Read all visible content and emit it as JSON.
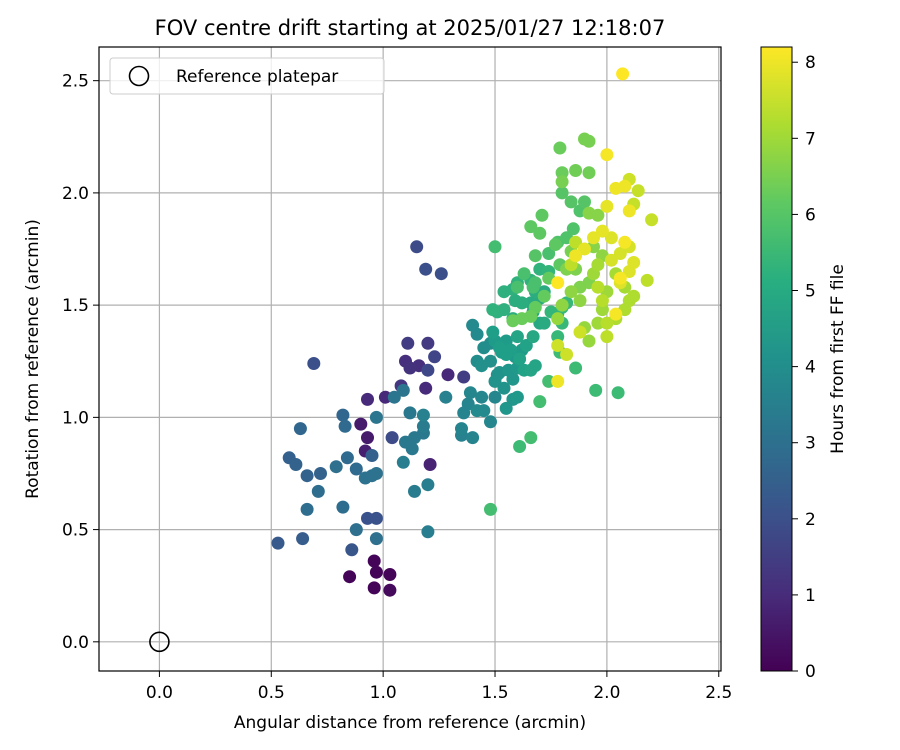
{
  "chart_data": {
    "type": "scatter",
    "title": "FOV centre drift starting at 2025/01/27 12:18:07",
    "xlabel": "Angular distance from reference (arcmin)",
    "ylabel": "Rotation from reference (arcmin)",
    "xlim": [
      -0.27,
      2.51
    ],
    "ylim": [
      -0.13,
      2.65
    ],
    "xticks": [
      "0.0",
      "0.5",
      "1.0",
      "1.5",
      "2.0",
      "2.5"
    ],
    "yticks": [
      "0.0",
      "0.5",
      "1.0",
      "1.5",
      "2.0",
      "2.5"
    ],
    "grid": true,
    "legend": {
      "placement": "top-left",
      "entries": [
        "Reference platepar"
      ]
    },
    "reference_point": {
      "x": 0.0,
      "y": 0.0,
      "label": "Reference platepar"
    },
    "colorbar": {
      "label": "Hours from first FF file",
      "colormap": "viridis",
      "range": [
        0,
        8.2
      ],
      "ticks": [
        "0",
        "1",
        "2",
        "3",
        "4",
        "5",
        "6",
        "7",
        "8"
      ]
    },
    "series": [
      {
        "points": [
          [
            0.85,
            0.29,
            0.1
          ],
          [
            0.96,
            0.36,
            0.1
          ],
          [
            0.97,
            0.31,
            0.1
          ],
          [
            1.03,
            0.3,
            0.1
          ],
          [
            0.96,
            0.24,
            0.1
          ],
          [
            1.03,
            0.23,
            0.2
          ],
          [
            0.9,
            0.97,
            0.6
          ],
          [
            0.93,
            0.91,
            0.6
          ],
          [
            0.92,
            0.85,
            0.7
          ],
          [
            1.21,
            0.79,
            0.8
          ],
          [
            1.29,
            1.19,
            0.9
          ],
          [
            1.01,
            1.09,
            0.9
          ],
          [
            0.93,
            1.08,
            1.0
          ],
          [
            1.19,
            1.13,
            1.0
          ],
          [
            1.16,
            1.23,
            1.1
          ],
          [
            1.1,
            1.25,
            1.1
          ],
          [
            1.12,
            1.22,
            1.2
          ],
          [
            1.08,
            1.14,
            1.3
          ],
          [
            1.2,
            1.33,
            1.4
          ],
          [
            1.11,
            1.33,
            1.5
          ],
          [
            1.36,
            1.18,
            1.5
          ],
          [
            1.23,
            1.27,
            1.7
          ],
          [
            1.2,
            1.21,
            1.8
          ],
          [
            1.04,
            0.91,
            1.9
          ],
          [
            1.15,
            1.76,
            1.9
          ],
          [
            1.19,
            1.66,
            2.0
          ],
          [
            1.26,
            1.64,
            2.0
          ],
          [
            0.69,
            1.24,
            2.0
          ],
          [
            0.93,
            0.55,
            2.1
          ],
          [
            0.97,
            0.55,
            2.1
          ],
          [
            0.86,
            0.41,
            2.2
          ],
          [
            0.53,
            0.44,
            2.3
          ],
          [
            0.64,
            0.46,
            2.4
          ],
          [
            0.95,
            0.83,
            2.5
          ],
          [
            0.58,
            0.82,
            2.5
          ],
          [
            0.61,
            0.79,
            2.6
          ],
          [
            0.66,
            0.74,
            2.6
          ],
          [
            0.72,
            0.75,
            2.6
          ],
          [
            0.63,
            0.95,
            2.7
          ],
          [
            0.82,
            1.01,
            2.7
          ],
          [
            0.83,
            0.96,
            2.8
          ],
          [
            0.88,
            0.77,
            2.8
          ],
          [
            0.84,
            0.82,
            2.8
          ],
          [
            0.71,
            0.67,
            2.9
          ],
          [
            0.66,
            0.59,
            2.9
          ],
          [
            0.82,
            0.6,
            2.9
          ],
          [
            0.88,
            0.5,
            3.0
          ],
          [
            0.97,
            0.46,
            3.0
          ],
          [
            0.79,
            0.78,
            3.0
          ],
          [
            0.95,
            0.74,
            3.1
          ],
          [
            0.92,
            0.73,
            3.1
          ],
          [
            0.97,
            0.75,
            3.1
          ],
          [
            0.97,
            1.0,
            3.2
          ],
          [
            1.05,
            1.09,
            3.2
          ],
          [
            1.09,
            1.12,
            3.2
          ],
          [
            1.1,
            0.89,
            3.3
          ],
          [
            1.13,
            0.86,
            3.3
          ],
          [
            1.14,
            0.91,
            3.3
          ],
          [
            1.18,
            0.93,
            3.3
          ],
          [
            1.12,
            1.02,
            3.3
          ],
          [
            1.18,
            0.96,
            3.4
          ],
          [
            1.14,
            0.67,
            3.4
          ],
          [
            1.2,
            0.7,
            3.5
          ],
          [
            1.2,
            0.49,
            3.5
          ],
          [
            1.09,
            0.8,
            3.5
          ],
          [
            1.18,
            1.01,
            3.6
          ],
          [
            1.28,
            1.09,
            3.6
          ],
          [
            1.35,
            0.92,
            3.6
          ],
          [
            1.35,
            0.95,
            3.7
          ],
          [
            1.4,
            0.91,
            3.7
          ],
          [
            1.36,
            1.02,
            3.7
          ],
          [
            1.38,
            1.06,
            3.7
          ],
          [
            1.39,
            1.11,
            3.8
          ],
          [
            1.44,
            1.09,
            3.8
          ],
          [
            1.48,
            0.98,
            3.8
          ],
          [
            1.5,
            1.09,
            3.8
          ],
          [
            1.45,
            1.03,
            3.9
          ],
          [
            1.42,
            1.03,
            3.9
          ],
          [
            1.4,
            1.41,
            3.9
          ],
          [
            1.42,
            1.37,
            3.9
          ],
          [
            1.45,
            1.31,
            4.0
          ],
          [
            1.48,
            1.33,
            4.0
          ],
          [
            1.42,
            1.25,
            4.0
          ],
          [
            1.48,
            1.25,
            4.1
          ],
          [
            1.44,
            1.23,
            4.1
          ],
          [
            1.51,
            1.19,
            4.1
          ],
          [
            1.5,
            1.16,
            4.2
          ],
          [
            1.52,
            1.2,
            4.2
          ],
          [
            1.54,
            1.13,
            4.2
          ],
          [
            1.56,
            1.21,
            4.3
          ],
          [
            1.58,
            1.17,
            4.3
          ],
          [
            1.58,
            1.08,
            4.3
          ],
          [
            1.55,
            1.04,
            4.3
          ],
          [
            1.6,
            1.09,
            4.4
          ],
          [
            1.6,
            1.22,
            4.4
          ],
          [
            1.59,
            1.27,
            4.4
          ],
          [
            1.62,
            1.3,
            4.5
          ],
          [
            1.55,
            1.34,
            4.5
          ],
          [
            1.53,
            1.29,
            4.5
          ],
          [
            1.5,
            1.34,
            4.5
          ],
          [
            1.49,
            1.38,
            4.6
          ],
          [
            1.52,
            1.31,
            4.6
          ],
          [
            1.55,
            1.28,
            4.6
          ],
          [
            1.57,
            1.3,
            4.6
          ],
          [
            1.61,
            1.26,
            4.7
          ],
          [
            1.64,
            1.32,
            4.7
          ],
          [
            1.63,
            1.21,
            4.7
          ],
          [
            1.66,
            1.21,
            4.8
          ],
          [
            1.68,
            1.23,
            4.8
          ],
          [
            1.6,
            1.36,
            4.8
          ],
          [
            1.67,
            1.36,
            4.9
          ],
          [
            1.7,
            1.42,
            4.9
          ],
          [
            1.67,
            1.47,
            4.9
          ],
          [
            1.72,
            1.42,
            5.0
          ],
          [
            1.66,
            1.51,
            5.0
          ],
          [
            1.7,
            1.53,
            5.0
          ],
          [
            1.72,
            1.56,
            5.0
          ],
          [
            1.68,
            1.56,
            5.1
          ],
          [
            1.62,
            1.51,
            5.1
          ],
          [
            1.58,
            1.44,
            5.1
          ],
          [
            1.59,
            1.52,
            5.1
          ],
          [
            1.58,
            1.57,
            5.2
          ],
          [
            1.54,
            1.56,
            5.2
          ],
          [
            1.54,
            1.48,
            5.2
          ],
          [
            1.51,
            1.47,
            5.2
          ],
          [
            1.49,
            1.48,
            5.3
          ],
          [
            1.6,
            1.6,
            5.3
          ],
          [
            1.66,
            1.61,
            5.3
          ],
          [
            1.7,
            1.66,
            5.3
          ],
          [
            1.74,
            1.65,
            5.4
          ],
          [
            1.75,
            1.47,
            5.4
          ],
          [
            1.78,
            1.46,
            5.4
          ],
          [
            1.8,
            1.49,
            5.5
          ],
          [
            1.82,
            1.51,
            5.5
          ],
          [
            1.8,
            1.42,
            5.5
          ],
          [
            1.78,
            1.36,
            5.5
          ],
          [
            1.86,
            1.22,
            5.6
          ],
          [
            1.95,
            1.12,
            5.6
          ],
          [
            2.05,
            1.11,
            5.6
          ],
          [
            1.79,
            1.29,
            5.6
          ],
          [
            1.61,
            0.87,
            5.6
          ],
          [
            1.66,
            0.91,
            5.7
          ],
          [
            1.7,
            1.07,
            5.7
          ],
          [
            1.74,
            1.16,
            5.7
          ],
          [
            1.48,
            0.59,
            5.7
          ],
          [
            1.5,
            1.76,
            5.7
          ],
          [
            1.63,
            1.64,
            5.8
          ],
          [
            1.6,
            1.58,
            5.8
          ],
          [
            1.67,
            1.58,
            5.8
          ],
          [
            1.68,
            1.6,
            5.8
          ],
          [
            1.74,
            1.73,
            5.8
          ],
          [
            1.78,
            1.78,
            5.9
          ],
          [
            1.82,
            1.8,
            5.9
          ],
          [
            1.85,
            1.84,
            5.9
          ],
          [
            1.88,
            1.92,
            5.9
          ],
          [
            1.9,
            1.96,
            6.0
          ],
          [
            1.84,
            1.96,
            6.0
          ],
          [
            1.8,
            2.0,
            6.0
          ],
          [
            1.68,
            1.72,
            6.0
          ],
          [
            1.66,
            1.85,
            6.1
          ],
          [
            1.7,
            1.82,
            6.1
          ],
          [
            1.71,
            1.9,
            6.1
          ],
          [
            1.77,
            1.77,
            6.1
          ],
          [
            1.79,
            1.68,
            6.1
          ],
          [
            1.74,
            1.62,
            6.2
          ],
          [
            1.72,
            1.54,
            6.2
          ],
          [
            1.68,
            1.49,
            6.2
          ],
          [
            1.66,
            1.45,
            6.3
          ],
          [
            1.62,
            1.44,
            6.3
          ],
          [
            1.58,
            1.43,
            6.3
          ],
          [
            1.79,
            2.2,
            6.3
          ],
          [
            1.8,
            2.09,
            6.3
          ],
          [
            1.86,
            2.1,
            6.4
          ],
          [
            1.92,
            2.09,
            6.4
          ],
          [
            1.9,
            2.24,
            6.5
          ],
          [
            1.92,
            2.23,
            6.5
          ],
          [
            1.8,
            2.05,
            6.5
          ],
          [
            1.84,
            1.74,
            6.5
          ],
          [
            1.82,
            1.66,
            6.6
          ],
          [
            1.86,
            1.66,
            6.6
          ],
          [
            1.88,
            1.58,
            6.6
          ],
          [
            1.92,
            1.6,
            6.6
          ],
          [
            1.92,
            1.91,
            6.7
          ],
          [
            1.96,
            1.9,
            6.7
          ],
          [
            1.94,
            1.76,
            6.7
          ],
          [
            1.98,
            1.72,
            6.8
          ],
          [
            1.88,
            1.52,
            6.8
          ],
          [
            1.84,
            1.56,
            6.8
          ],
          [
            1.8,
            1.5,
            6.8
          ],
          [
            1.78,
            1.44,
            6.9
          ],
          [
            1.9,
            1.4,
            6.9
          ],
          [
            1.92,
            1.34,
            6.9
          ],
          [
            1.96,
            1.42,
            7.0
          ],
          [
            1.98,
            1.48,
            7.0
          ],
          [
            2.0,
            1.56,
            7.0
          ],
          [
            1.94,
            1.64,
            7.0
          ],
          [
            1.96,
            1.68,
            7.1
          ],
          [
            2.04,
            1.64,
            7.1
          ],
          [
            2.08,
            1.58,
            7.1
          ],
          [
            2.1,
            1.52,
            7.2
          ],
          [
            2.12,
            1.54,
            7.2
          ],
          [
            2.08,
            1.48,
            7.2
          ],
          [
            2.04,
            1.44,
            7.2
          ],
          [
            1.98,
            1.52,
            7.3
          ],
          [
            1.96,
            1.58,
            7.3
          ],
          [
            2.0,
            1.42,
            7.3
          ],
          [
            2.0,
            1.36,
            7.4
          ],
          [
            1.84,
            1.68,
            7.4
          ],
          [
            1.86,
            1.78,
            7.4
          ],
          [
            2.18,
            1.61,
            7.4
          ],
          [
            2.2,
            1.88,
            7.5
          ],
          [
            2.12,
            1.95,
            7.5
          ],
          [
            2.14,
            2.01,
            7.5
          ],
          [
            2.1,
            2.06,
            7.6
          ],
          [
            1.78,
            1.32,
            7.6
          ],
          [
            1.82,
            1.28,
            7.6
          ],
          [
            1.88,
            1.38,
            7.6
          ],
          [
            2.02,
            1.7,
            7.7
          ],
          [
            2.06,
            1.73,
            7.7
          ],
          [
            2.1,
            1.76,
            7.7
          ],
          [
            2.12,
            1.69,
            7.8
          ],
          [
            2.1,
            1.65,
            7.8
          ],
          [
            2.06,
            1.6,
            7.8
          ],
          [
            2.02,
            1.8,
            7.8
          ],
          [
            1.98,
            1.83,
            7.9
          ],
          [
            1.94,
            1.8,
            7.9
          ],
          [
            1.9,
            1.75,
            7.9
          ],
          [
            2.0,
            1.94,
            7.9
          ],
          [
            2.04,
            2.02,
            8.0
          ],
          [
            2.08,
            2.03,
            8.0
          ],
          [
            2.1,
            1.92,
            8.0
          ],
          [
            1.86,
            1.72,
            8.0
          ],
          [
            1.78,
            1.16,
            8.0
          ],
          [
            2.0,
            2.17,
            8.1
          ],
          [
            2.06,
            1.62,
            8.1
          ],
          [
            2.08,
            1.78,
            8.1
          ],
          [
            2.04,
            1.46,
            8.1
          ],
          [
            2.07,
            2.53,
            8.2
          ],
          [
            1.78,
            1.6,
            8.2
          ]
        ]
      }
    ]
  }
}
